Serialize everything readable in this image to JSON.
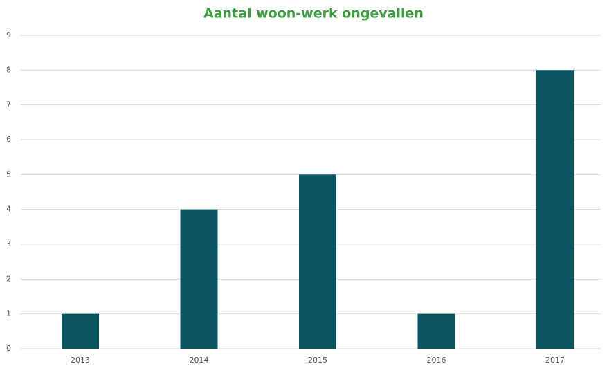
{
  "chart_data": {
    "type": "bar",
    "title": "Aantal woon-werk ongevallen",
    "categories": [
      "2013",
      "2014",
      "2015",
      "2016",
      "2017"
    ],
    "values": [
      1,
      4,
      5,
      1,
      8
    ],
    "color": "#0a5561",
    "ylim": [
      0,
      9
    ],
    "yticks": [
      0,
      1,
      2,
      3,
      4,
      5,
      6,
      7,
      8,
      9
    ],
    "grid": true
  }
}
